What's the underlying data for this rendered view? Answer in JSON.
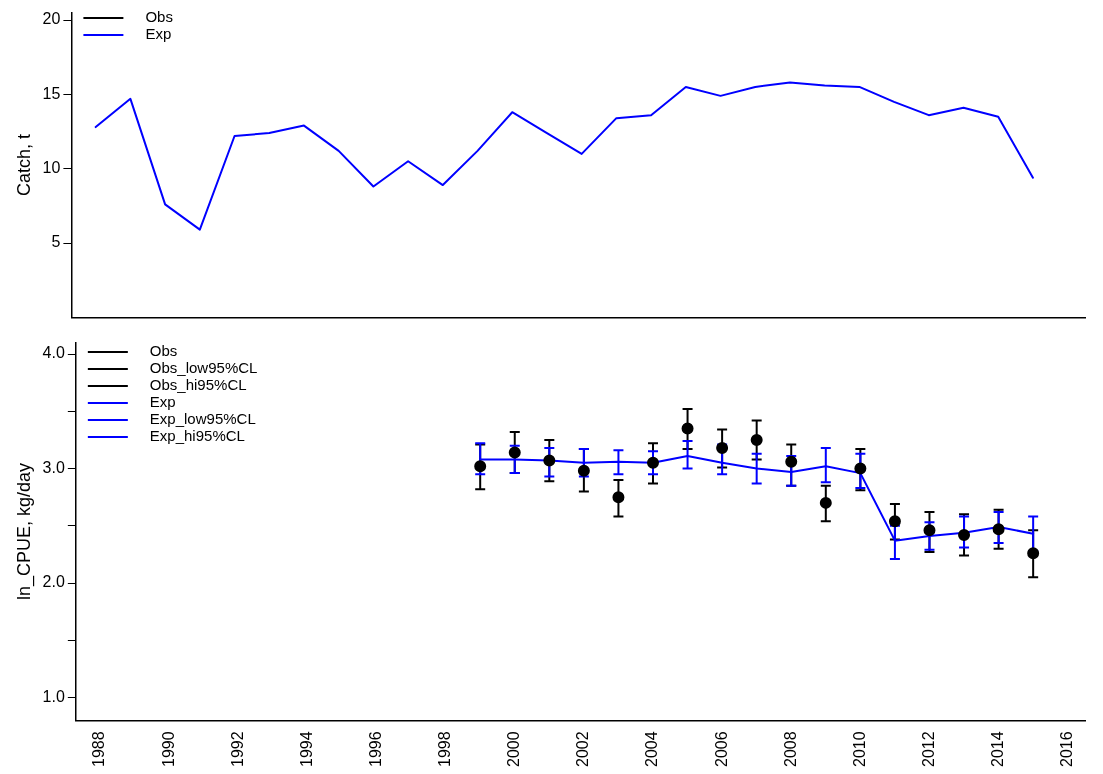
{
  "chart_data": [
    {
      "type": "line",
      "ylabel": "Catch, t",
      "x": [
        1988,
        1989,
        1990,
        1991,
        1992,
        1993,
        1994,
        1995,
        1996,
        1997,
        1998,
        1999,
        2000,
        2001,
        2002,
        2003,
        2004,
        2005,
        2006,
        2007,
        2008,
        2009,
        2010,
        2011,
        2012,
        2013,
        2014,
        2015
      ],
      "series": [
        {
          "name": "Obs",
          "color": "#000000",
          "values": [
            null,
            null,
            null,
            null,
            null,
            null,
            null,
            null,
            null,
            null,
            null,
            null,
            null,
            null,
            null,
            null,
            null,
            null,
            null,
            null,
            null,
            null,
            null,
            null,
            null,
            null,
            null,
            null
          ]
        },
        {
          "name": "Exp",
          "color": "#0000ff",
          "values": [
            12.8,
            14.7,
            7.6,
            5.9,
            12.2,
            12.4,
            12.9,
            11.2,
            8.8,
            10.5,
            8.9,
            11.2,
            13.8,
            12.4,
            11.0,
            13.4,
            13.6,
            15.5,
            14.9,
            15.5,
            15.8,
            15.6,
            15.5,
            14.5,
            13.6,
            14.1,
            13.5,
            9.4
          ]
        }
      ],
      "xlim": [
        1987.3,
        2016.5
      ],
      "xticks": [
        1988,
        1990,
        1992,
        1994,
        1996,
        1998,
        2000,
        2002,
        2004,
        2006,
        2008,
        2010,
        2012,
        2014,
        2016
      ],
      "ylim": [
        0,
        20.5
      ],
      "yticks": [
        5,
        10,
        15,
        20
      ],
      "tick_labels": "y",
      "legend": "top left",
      "grid": false,
      "marker": "none"
    },
    {
      "type": "scatter",
      "ylabel": "ln_CPUE, kg/day",
      "x": [
        1999,
        2000,
        2001,
        2002,
        2003,
        2004,
        2005,
        2006,
        2007,
        2008,
        2009,
        2010,
        2011,
        2012,
        2013,
        2014,
        2015
      ],
      "series": [
        {
          "name": "Obs",
          "color": "#000000",
          "marker": "circle",
          "values": [
            3.02,
            3.14,
            3.07,
            2.98,
            2.75,
            3.05,
            3.35,
            3.18,
            3.25,
            3.06,
            2.7,
            3.0,
            2.54,
            2.46,
            2.42,
            2.47,
            2.26
          ],
          "errors": [
            [
              2.82,
              3.21
            ],
            [
              2.96,
              3.32
            ],
            [
              2.89,
              3.25
            ],
            [
              2.8,
              3.17
            ],
            [
              2.58,
              2.9
            ],
            [
              2.87,
              3.22
            ],
            [
              3.17,
              3.52
            ],
            [
              3.01,
              3.34
            ],
            [
              3.08,
              3.42
            ],
            [
              2.85,
              3.21
            ],
            [
              2.54,
              2.85
            ],
            [
              2.81,
              3.17
            ],
            [
              2.38,
              2.69
            ],
            [
              2.27,
              2.62
            ],
            [
              2.24,
              2.6
            ],
            [
              2.3,
              2.64
            ],
            [
              2.05,
              2.46
            ]
          ]
        },
        {
          "name": "Obs_low95%CL",
          "color": "#000000",
          "values": [
            null,
            null,
            null,
            null,
            null,
            null,
            null,
            null,
            null,
            null,
            null,
            null,
            null,
            null,
            null,
            null,
            null
          ]
        },
        {
          "name": "Obs_hi95%CL",
          "color": "#000000",
          "values": [
            null,
            null,
            null,
            null,
            null,
            null,
            null,
            null,
            null,
            null,
            null,
            null,
            null,
            null,
            null,
            null,
            null
          ]
        },
        {
          "name": "Exp",
          "color": "#0000ff",
          "type": "line",
          "marker": "none",
          "values": [
            3.08,
            3.08,
            3.07,
            3.05,
            3.06,
            3.05,
            3.11,
            3.05,
            3.0,
            2.97,
            3.02,
            2.96,
            2.37,
            2.41,
            2.44,
            2.49,
            2.43
          ],
          "errors": [
            [
              2.95,
              3.22
            ],
            [
              2.96,
              3.2
            ],
            [
              2.93,
              3.18
            ],
            [
              2.93,
              3.17
            ],
            [
              2.95,
              3.16
            ],
            [
              2.95,
              3.15
            ],
            [
              3.0,
              3.24
            ],
            [
              2.95,
              3.21
            ],
            [
              2.87,
              3.13
            ],
            [
              2.85,
              3.11
            ],
            [
              2.88,
              3.18
            ],
            [
              2.83,
              3.13
            ],
            [
              2.21,
              2.5
            ],
            [
              2.29,
              2.53
            ],
            [
              2.31,
              2.58
            ],
            [
              2.35,
              2.62
            ],
            [
              2.28,
              2.58
            ]
          ]
        },
        {
          "name": "Exp_low95%CL",
          "color": "#0000ff",
          "type": "line",
          "marker": "none",
          "values": [
            null,
            null,
            null,
            null,
            null,
            null,
            null,
            null,
            null,
            null,
            null,
            null,
            null,
            null,
            null,
            null,
            null
          ]
        },
        {
          "name": "Exp_hi95%CL",
          "color": "#0000ff",
          "type": "line",
          "marker": "none",
          "values": [
            null,
            null,
            null,
            null,
            null,
            null,
            null,
            null,
            null,
            null,
            null,
            null,
            null,
            null,
            null,
            null,
            null
          ]
        }
      ],
      "xlim": [
        1987.3,
        2016.5
      ],
      "xticks": [
        1988,
        1990,
        1992,
        1994,
        1996,
        1998,
        2000,
        2002,
        2004,
        2006,
        2008,
        2010,
        2012,
        2014,
        2016
      ],
      "ylim": [
        0.8,
        4.1
      ],
      "yticks": [
        {
          "value": 1,
          "label": "1.0"
        },
        {
          "value": 1.5,
          "label": null
        },
        {
          "value": 2,
          "label": "2.0"
        },
        {
          "value": 2.5,
          "label": null
        },
        {
          "value": 3,
          "label": "3.0"
        },
        {
          "value": 3.5,
          "label": null
        },
        {
          "value": 4,
          "label": "4.0"
        }
      ],
      "legend": "top left",
      "grid": false
    }
  ]
}
